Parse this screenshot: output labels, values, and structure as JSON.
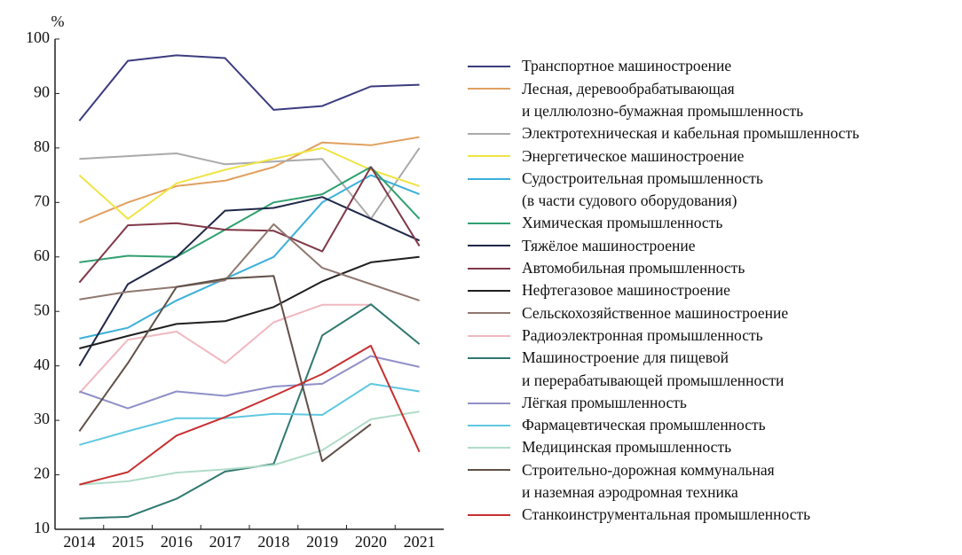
{
  "chart_data": {
    "type": "line",
    "ylabel": "%",
    "categories": [
      "2014",
      "2015",
      "2016",
      "2017",
      "2018",
      "2019",
      "2020",
      "2021"
    ],
    "ylim": [
      10,
      100
    ],
    "yticks": [
      10,
      20,
      30,
      40,
      50,
      60,
      70,
      80,
      90,
      100
    ],
    "legend": "right",
    "series": [
      {
        "name": "Транспортное машиностроение",
        "color": "#3c3c80",
        "values": [
          85,
          96,
          97,
          96.5,
          87,
          87.7,
          91.3,
          91.6
        ]
      },
      {
        "name": "Лесная, деревообрабатывающая\nи целлюлозно-бумажная промышленность",
        "color": "#e0a060",
        "values": [
          66.3,
          70,
          73,
          74,
          76.5,
          81,
          80.5,
          82
        ]
      },
      {
        "name": "Электротехническая и кабельная промышленность",
        "color": "#aaaaaa",
        "values": [
          78,
          78.5,
          79,
          77,
          77.5,
          78,
          67,
          80
        ]
      },
      {
        "name": "Энергетическое машиностроение",
        "color": "#f0e444",
        "values": [
          75,
          67,
          73.5,
          76,
          78,
          80,
          76,
          73
        ]
      },
      {
        "name": "Судостроительная промышленность\n(в части судового оборудования)",
        "color": "#3cb0d8",
        "values": [
          45,
          47,
          52,
          56,
          60,
          70,
          75,
          71.5
        ]
      },
      {
        "name": "Химическая промышленность",
        "color": "#30a070",
        "values": [
          59,
          60.2,
          60,
          65,
          70,
          71.5,
          76.5,
          67
        ]
      },
      {
        "name": "Тяжёлое машиностроение",
        "color": "#202848",
        "values": [
          40,
          55,
          60,
          68.5,
          69,
          71,
          67,
          63
        ]
      },
      {
        "name": "Автомобильная промышленность",
        "color": "#803848",
        "values": [
          55.3,
          65.8,
          66.2,
          65,
          64.8,
          61,
          76.5,
          62
        ]
      },
      {
        "name": "Нефтегазовое машиностроение",
        "color": "#202020",
        "values": [
          43.2,
          45.5,
          47.7,
          48.2,
          50.8,
          55.5,
          59,
          60
        ]
      },
      {
        "name": "Сельскохозяйственное машиностроение",
        "color": "#907870",
        "values": [
          52.2,
          53.6,
          54.5,
          55.7,
          66,
          58,
          55,
          52
        ]
      },
      {
        "name": "Радиоэлектронная промышленность",
        "color": "#f0b8c0",
        "values": [
          35,
          44.8,
          46.3,
          40.5,
          48,
          51.2,
          51.2,
          null
        ]
      },
      {
        "name": "Машиностроение для пищевой\nи перерабатывающей промышленности",
        "color": "#307870",
        "values": [
          12,
          12.3,
          15.6,
          20.6,
          22,
          45.6,
          51.3,
          44
        ]
      },
      {
        "name": "Лёгкая промышленность",
        "color": "#9090c8",
        "values": [
          35.3,
          32.2,
          35.3,
          34.5,
          36.2,
          36.7,
          41.8,
          39.8
        ]
      },
      {
        "name": "Фармацевтическая промышленность",
        "color": "#60c8e0",
        "values": [
          25.5,
          28,
          30.4,
          30.4,
          31.2,
          31,
          36.7,
          35.3
        ]
      },
      {
        "name": "Медицинская промышленность",
        "color": "#b0dcc8",
        "values": [
          18.2,
          18.8,
          20.4,
          21,
          21.8,
          24.5,
          30.2,
          31.6
        ]
      },
      {
        "name": "Строительно-дорожная коммунальная\nи наземная аэродромная техника",
        "color": "#605048",
        "values": [
          28,
          40.5,
          54.5,
          56,
          56.5,
          22.5,
          29.3,
          null
        ]
      },
      {
        "name": "Станкоинструментальная промышленность",
        "color": "#c83030",
        "values": [
          18.2,
          20.5,
          27.2,
          30.6,
          34.5,
          38.5,
          43.7,
          24.2
        ]
      }
    ]
  }
}
